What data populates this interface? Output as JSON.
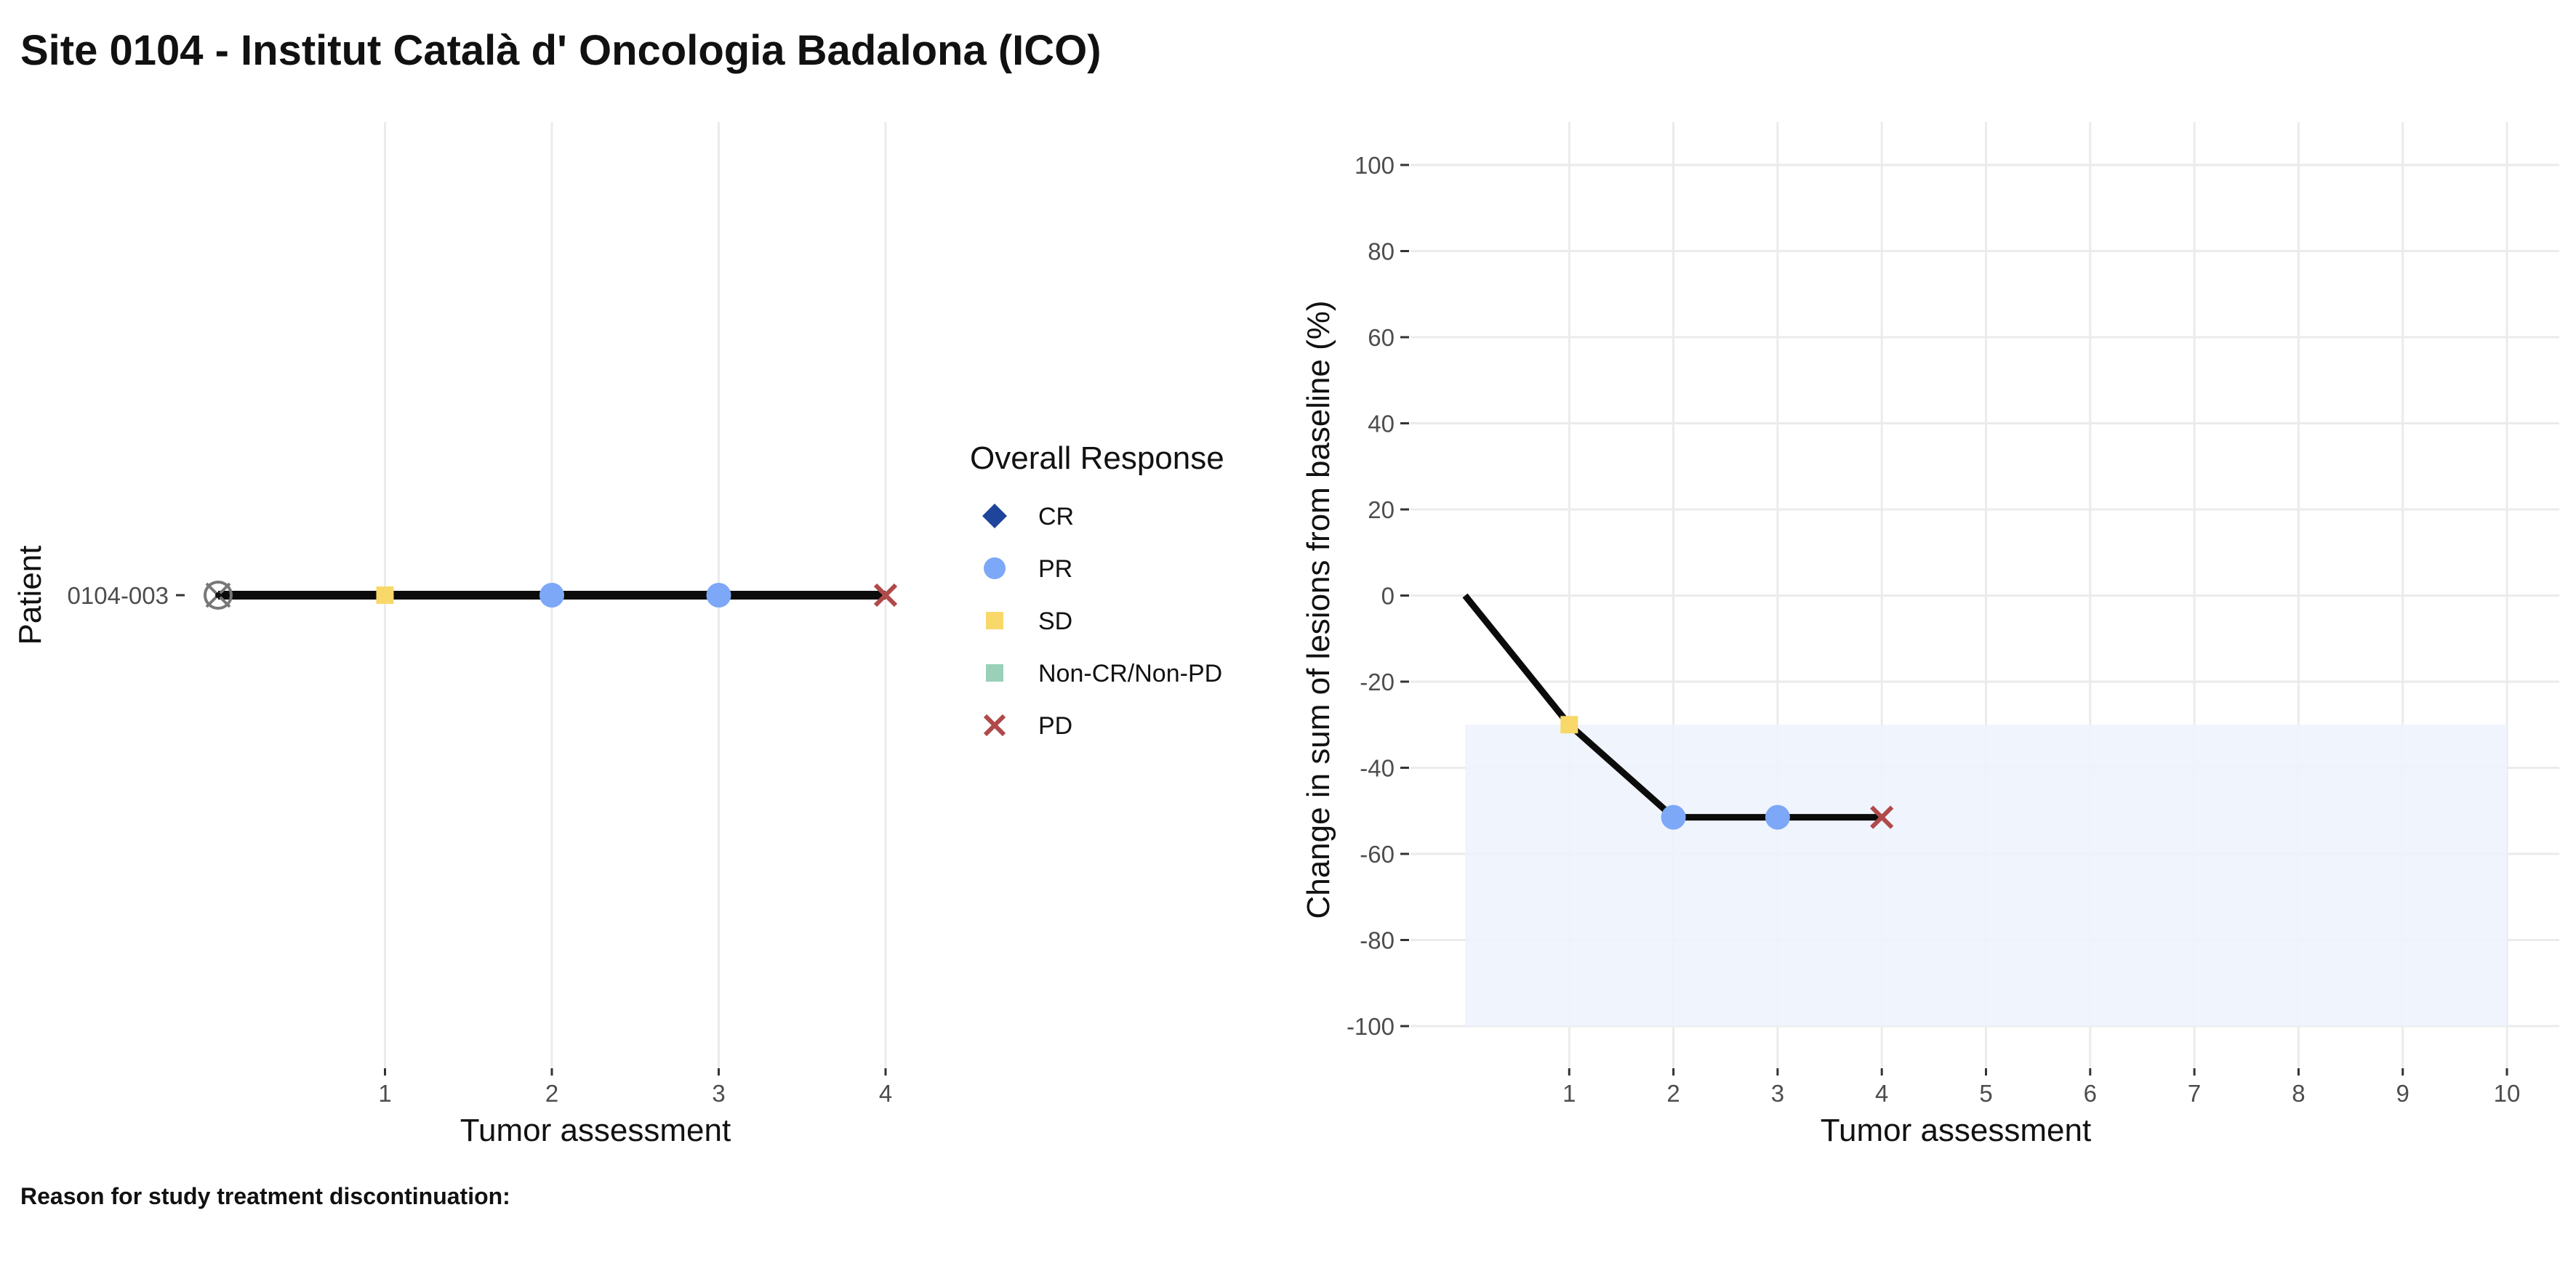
{
  "page": {
    "title": "Site 0104 - Institut Català d' Oncologia Badalona (ICO)",
    "footer": "Reason for study treatment discontinuation:"
  },
  "colors": {
    "CR": "#1F449C",
    "PR": "#7CA8F7",
    "SD": "#F9D86A",
    "Non-CR/Non-PD": "#9AD0B8",
    "PD": "#B04A4A",
    "line": "#0B0B0B",
    "grid": "#EBEBEB",
    "band": "#EEF3FD",
    "text": "#4D4D4D"
  },
  "legend": {
    "title": "Overall Response",
    "items": [
      {
        "label": "CR",
        "icon": "diamond"
      },
      {
        "label": "PR",
        "icon": "circle"
      },
      {
        "label": "SD",
        "icon": "square"
      },
      {
        "label": "Non-CR/Non-PD",
        "icon": "square"
      },
      {
        "label": "PD",
        "icon": "cross"
      }
    ]
  },
  "chart_data": [
    {
      "type": "line",
      "subtype": "swimmer",
      "xlabel": "Tumor assessment",
      "ylabel": "Patient",
      "x_ticks": [
        1,
        2,
        3,
        4
      ],
      "xlim": [
        0,
        4
      ],
      "categories": [
        "0104-003"
      ],
      "grid": "vertical",
      "series": [
        {
          "patient": "0104-003",
          "start_marker": "crossed-circle",
          "x": [
            0,
            1,
            2,
            3,
            4
          ],
          "response": [
            null,
            "SD",
            "PR",
            "PR",
            "PD"
          ]
        }
      ]
    },
    {
      "type": "line",
      "xlabel": "Tumor assessment",
      "ylabel": "Change in sum of lesions from baseline (%)",
      "x_ticks": [
        1,
        2,
        3,
        4,
        5,
        6,
        7,
        8,
        9,
        10
      ],
      "xlim": [
        0,
        10
      ],
      "y_ticks": [
        100,
        80,
        60,
        40,
        20,
        0,
        -20,
        -40,
        -60,
        -80,
        -100
      ],
      "ylim": [
        -100,
        100
      ],
      "grid": true,
      "shaded_region": {
        "y": [
          -100,
          -30
        ],
        "x": [
          0,
          10
        ]
      },
      "series": [
        {
          "x": [
            0,
            1,
            2,
            3,
            4
          ],
          "y": [
            0,
            -30,
            -51.5,
            -51.5,
            -51.5
          ],
          "response": [
            null,
            "SD",
            "PR",
            "PR",
            "PD"
          ]
        }
      ]
    }
  ]
}
